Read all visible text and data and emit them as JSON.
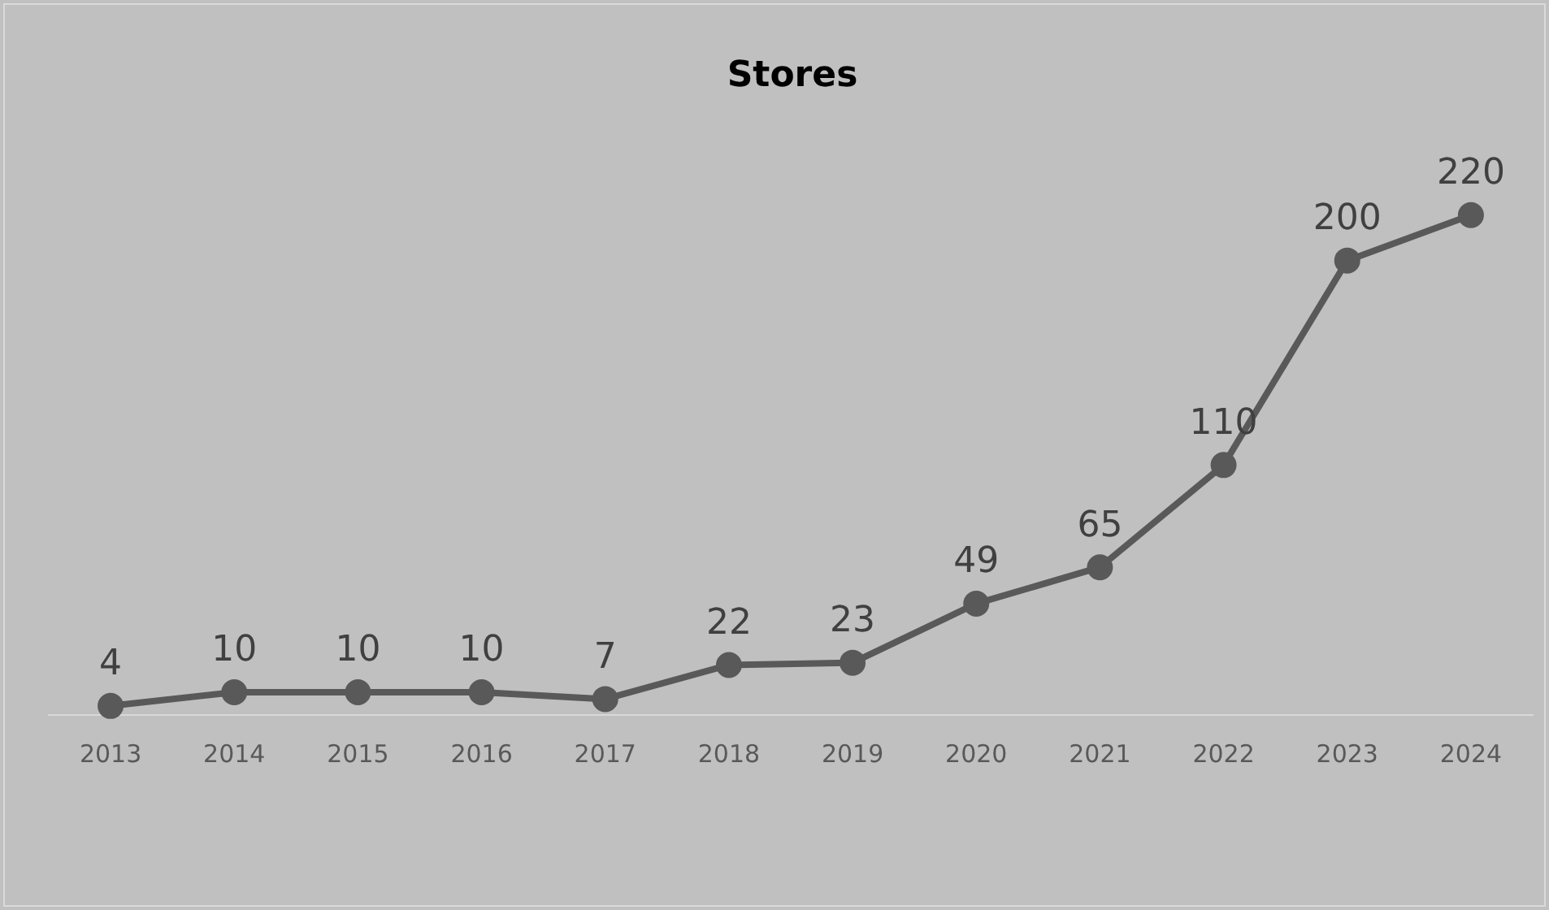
{
  "chart_data": {
    "type": "line",
    "title": "Stores",
    "categories": [
      "2013",
      "2014",
      "2015",
      "2016",
      "2017",
      "2018",
      "2019",
      "2020",
      "2021",
      "2022",
      "2023",
      "2024"
    ],
    "values": [
      4,
      10,
      10,
      10,
      7,
      22,
      23,
      49,
      65,
      110,
      200,
      220
    ],
    "color": "#595959",
    "marker": "circle",
    "data_labels": true,
    "grid": false,
    "tick_labels": "x"
  }
}
